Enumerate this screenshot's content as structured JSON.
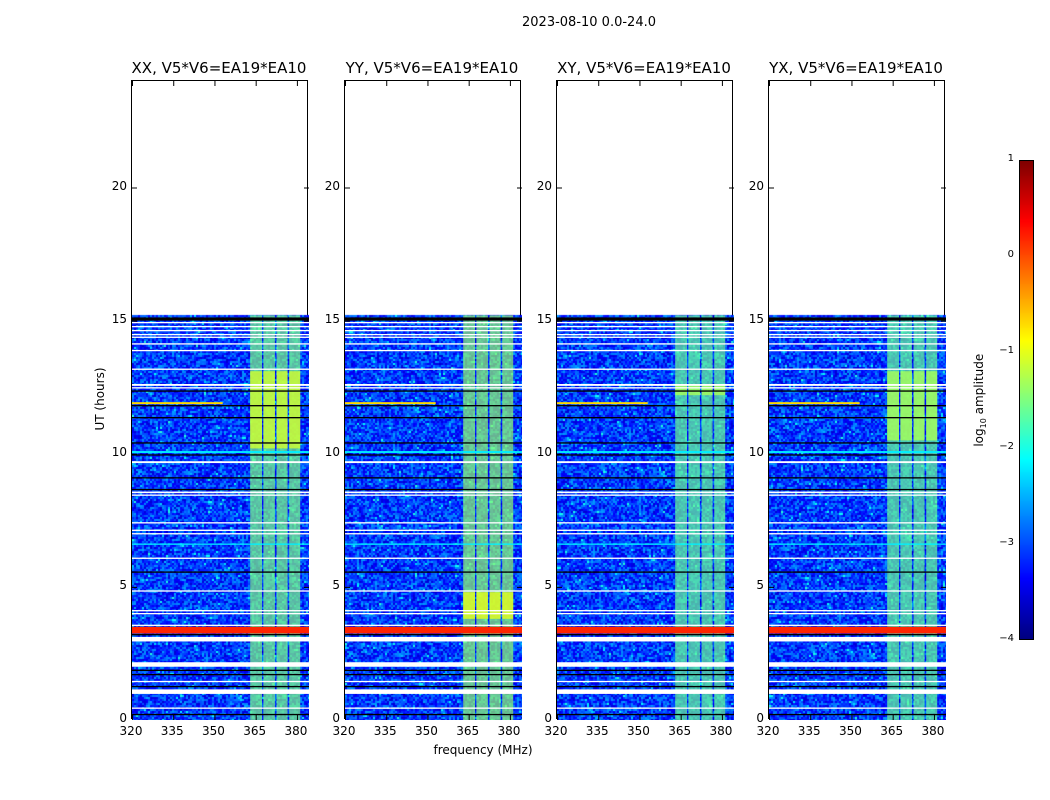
{
  "suptitle": "2023-08-10 0.0-24.0",
  "chart_data": {
    "type": "heatmap",
    "title": "2023-08-10 0.0-24.0",
    "xlabel": "frequency (MHz)",
    "ylabel": "UT (hours)",
    "xlim": [
      320,
      384.4
    ],
    "ylim": [
      0,
      24
    ],
    "xticks": [
      "320",
      "335",
      "350",
      "365",
      "380"
    ],
    "xtick_values": [
      320,
      335,
      350,
      365,
      380
    ],
    "yticks": [
      "0",
      "5",
      "10",
      "15",
      "20"
    ],
    "ytick_values": [
      0,
      5,
      10,
      15,
      20
    ],
    "data_time_range": [
      0,
      15.2
    ],
    "background_level": -3.1,
    "panels": [
      {
        "title": "XX, V5*V6=EA19*EA10",
        "subband_level": -1.5,
        "bright_window": [
          10.2,
          13.1
        ],
        "bright_level": -1.1
      },
      {
        "title": "YY, V5*V6=EA19*EA10",
        "subband_level": -1.4,
        "bright_window": [
          3.8,
          4.8
        ],
        "bright_level": -1.0
      },
      {
        "title": "XY, V5*V6=EA19*EA10",
        "subband_level": -1.6,
        "bright_window": [
          12.2,
          12.6
        ],
        "bright_level": -1.3
      },
      {
        "title": "YX, V5*V6=EA19*EA10",
        "subband_level": -1.6,
        "bright_window": [
          10.5,
          13.1
        ],
        "bright_level": -1.3
      }
    ],
    "subbands_mhz": [
      [
        363,
        367.3
      ],
      [
        367.8,
        372.0
      ],
      [
        372.6,
        376.6
      ],
      [
        377.2,
        381.2
      ]
    ],
    "flagged_rows_hours": [
      [
        14.9,
        14.95
      ],
      [
        14.75,
        14.8
      ],
      [
        14.6,
        14.65
      ],
      [
        14.45,
        14.5
      ],
      [
        14.35,
        14.4
      ],
      [
        14.1,
        14.15
      ],
      [
        13.85,
        13.9
      ],
      [
        13.15,
        13.2
      ],
      [
        12.55,
        12.62
      ],
      [
        12.45,
        12.5
      ],
      [
        9.65,
        9.72
      ],
      [
        8.52,
        8.58
      ],
      [
        8.42,
        8.47
      ],
      [
        7.38,
        7.43
      ],
      [
        7.1,
        7.15
      ],
      [
        6.97,
        7.02
      ],
      [
        6.05,
        6.1
      ],
      [
        4.82,
        4.87
      ],
      [
        4.08,
        4.13
      ],
      [
        3.97,
        4.02
      ],
      [
        3.53,
        3.58
      ],
      [
        2.95,
        3.12
      ],
      [
        2.0,
        2.17
      ],
      [
        1.42,
        1.47
      ],
      [
        0.98,
        1.15
      ],
      [
        0.42,
        0.47
      ]
    ],
    "zero_rows_hours": [
      [
        15.0,
        15.12
      ],
      [
        12.33,
        12.38
      ],
      [
        11.78,
        11.83
      ],
      [
        11.33,
        11.38
      ],
      [
        10.38,
        10.43
      ],
      [
        9.93,
        9.98
      ],
      [
        9.07,
        9.12
      ],
      [
        8.63,
        8.68
      ],
      [
        5.53,
        5.58
      ],
      [
        3.18,
        3.23
      ],
      [
        1.84,
        1.89
      ],
      [
        1.68,
        1.73
      ],
      [
        1.23,
        1.28
      ],
      [
        0.18,
        0.23
      ]
    ],
    "strong_rows": [
      {
        "hours": [
          3.25,
          3.5
        ],
        "level": 0.2
      },
      {
        "hours": [
          10.03,
          10.1
        ],
        "level": -2.2
      },
      {
        "hours": [
          6.58,
          6.63
        ],
        "level": -2.2
      }
    ],
    "rfi_lines": [
      {
        "hours": 11.9,
        "mhz": [
          320,
          353
        ],
        "level": -0.7
      }
    ],
    "colorbar": {
      "label": "log10 amplitude",
      "label_main": "log",
      "label_sub": "10",
      "label_rest": " amplitude",
      "ticks": [
        "1",
        "0",
        "−1",
        "−2",
        "−3",
        "−4"
      ],
      "tick_values": [
        1,
        0,
        -1,
        -2,
        -3,
        -4
      ],
      "range": [
        -4,
        1
      ],
      "colormap": "jet"
    }
  }
}
